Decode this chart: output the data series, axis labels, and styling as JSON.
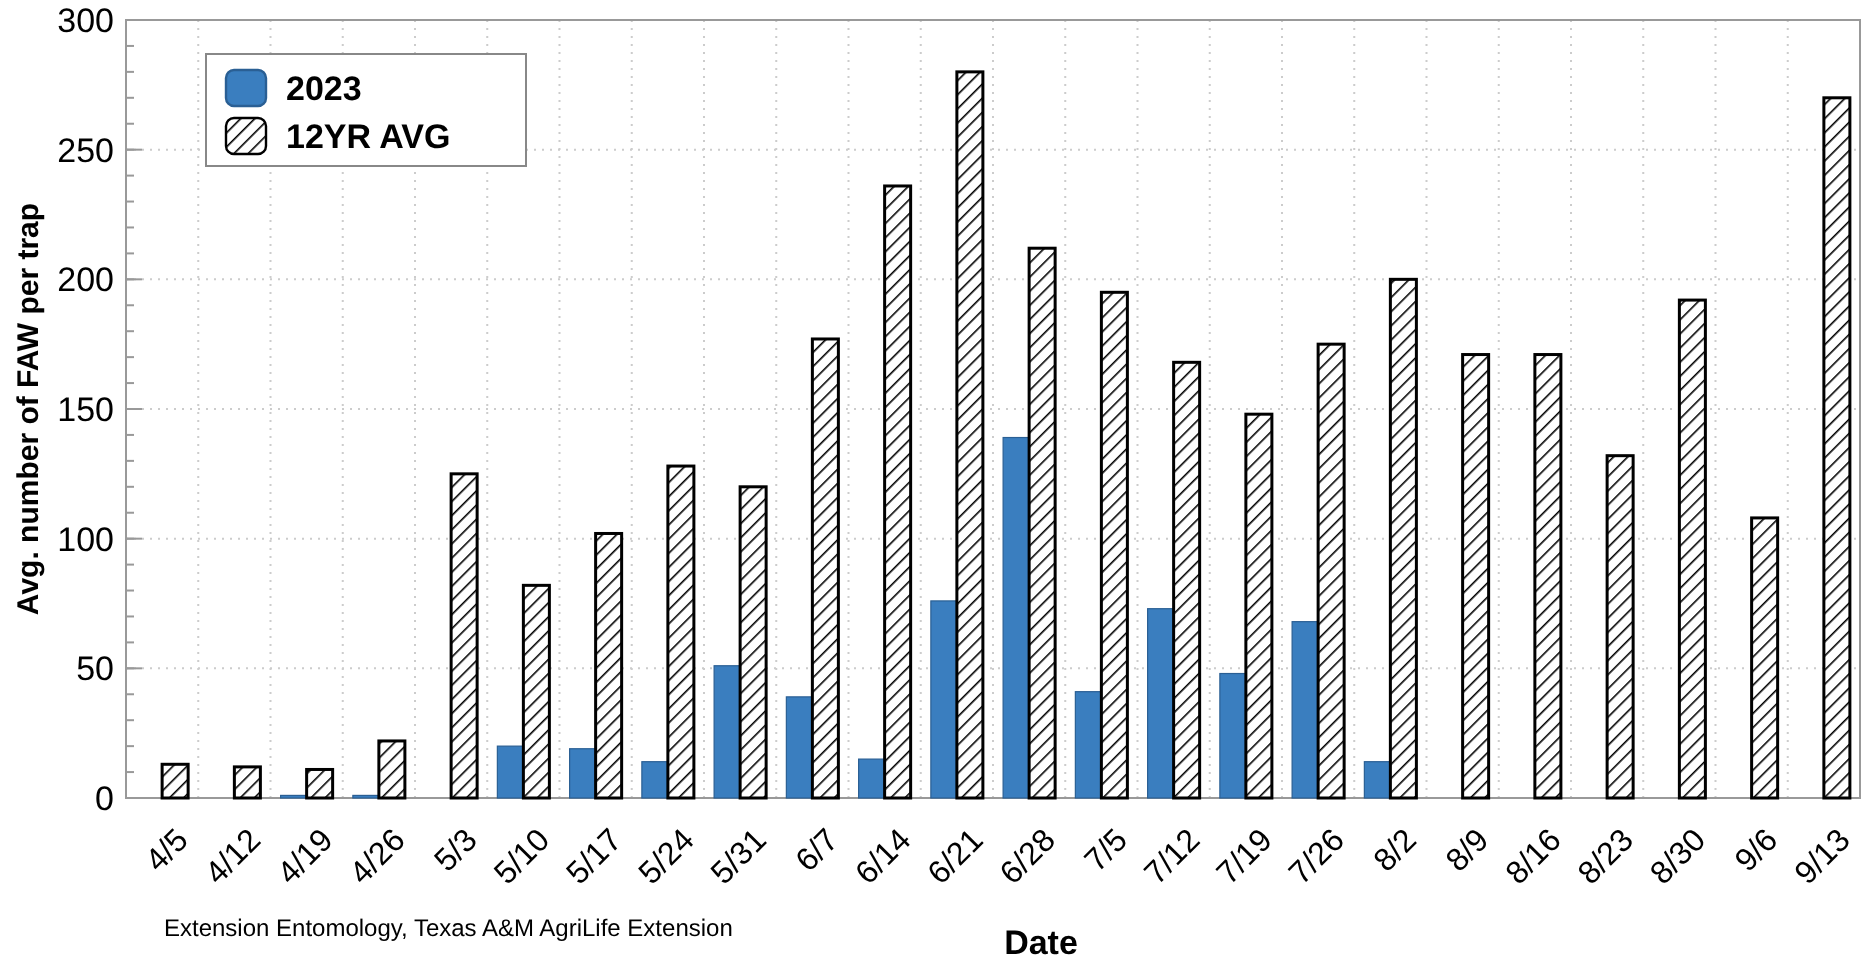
{
  "chart_data": {
    "type": "bar",
    "xlabel": "Date",
    "ylabel": "Avg. number of FAW per trap",
    "categories": [
      "4/5",
      "4/12",
      "4/19",
      "4/26",
      "5/3",
      "5/10",
      "5/17",
      "5/24",
      "5/31",
      "6/7",
      "6/14",
      "6/21",
      "6/28",
      "7/5",
      "7/12",
      "7/19",
      "7/26",
      "8/2",
      "8/9",
      "8/16",
      "8/23",
      "8/30",
      "9/6",
      "9/13"
    ],
    "series": [
      {
        "name": "2023",
        "color": "#3a7ebf",
        "values": [
          null,
          null,
          1,
          1,
          null,
          20,
          19,
          14,
          51,
          39,
          15,
          76,
          139,
          41,
          73,
          48,
          68,
          14,
          null,
          null,
          null,
          null,
          null,
          null
        ]
      },
      {
        "name": "12YR AVG",
        "color": "#000000",
        "values": [
          13,
          12,
          11,
          22,
          125,
          82,
          102,
          128,
          120,
          177,
          236,
          280,
          212,
          195,
          168,
          148,
          175,
          200,
          171,
          171,
          132,
          192,
          108,
          270
        ]
      }
    ],
    "ylim": [
      0,
      300
    ],
    "yticks": [
      0,
      50,
      100,
      150,
      200,
      250,
      300
    ],
    "grid": true,
    "legend": "top left",
    "annotations": [
      "Extension Entomology, Texas A&M AgriLife Extension"
    ]
  }
}
